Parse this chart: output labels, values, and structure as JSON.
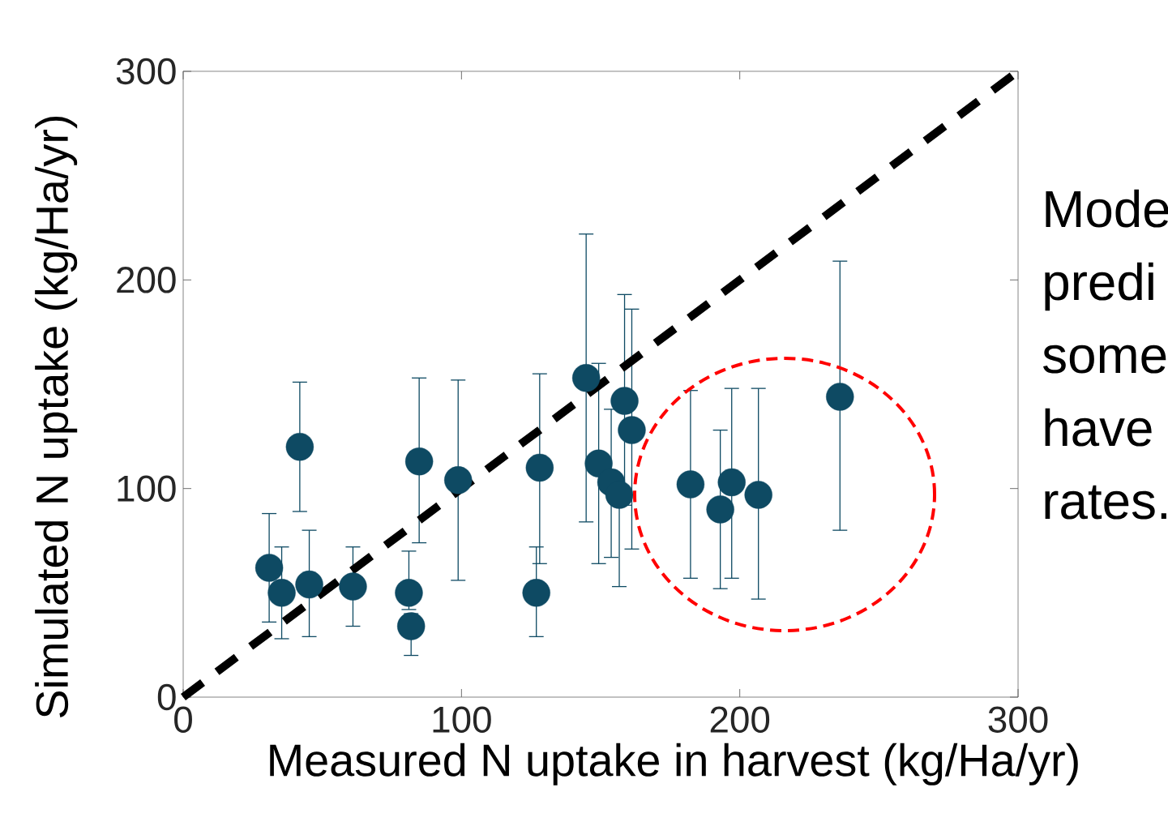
{
  "chart_data": {
    "type": "scatter",
    "xlabel": "Measured N uptake in harvest (kg/Ha/yr)",
    "ylabel": "Simulated N uptake (kg/Ha/yr)",
    "xlim": [
      0,
      300
    ],
    "ylim": [
      0,
      300
    ],
    "xticks": [
      0,
      100,
      200,
      300
    ],
    "yticks": [
      0,
      100,
      200,
      300
    ],
    "grid": false,
    "annotations": [
      "Mode",
      "predi",
      "some",
      "have",
      "rates."
    ],
    "series": [
      {
        "color": "#0e4a63",
        "marker": "circle",
        "x": [
          30.9,
          35.4,
          45.3,
          41.9,
          61.0,
          81.1,
          81.9,
          84.8,
          98.8,
          128.1,
          126.9,
          144.8,
          149.3,
          153.8,
          156.7,
          158.6,
          161.2,
          182.3,
          193.0,
          197.1,
          206.7,
          236.0
        ],
        "values": [
          62,
          50,
          54,
          120,
          53,
          50,
          34,
          113,
          104,
          110,
          50,
          153,
          112,
          103,
          97,
          142,
          128,
          102,
          90,
          103,
          97,
          144
        ],
        "errors": [
          [
            36,
            88
          ],
          [
            28,
            72
          ],
          [
            29,
            80
          ],
          [
            89,
            151
          ],
          [
            34,
            72
          ],
          [
            42,
            70
          ],
          [
            20,
            40
          ],
          [
            74,
            153
          ],
          [
            56,
            152
          ],
          [
            64,
            155
          ],
          [
            29,
            72
          ],
          [
            84,
            222
          ],
          [
            64,
            160
          ],
          [
            67,
            138
          ],
          [
            53,
            97
          ],
          [
            92,
            193
          ],
          [
            71,
            186
          ],
          [
            57,
            147
          ],
          [
            52,
            128
          ],
          [
            57,
            148
          ],
          [
            47,
            148
          ],
          [
            80,
            209
          ]
        ]
      },
      {
        "type": "line",
        "color": "#000000",
        "line_style": "dashed",
        "marker": "none",
        "x": [
          0,
          300
        ],
        "values": [
          0,
          300
        ]
      }
    ]
  }
}
